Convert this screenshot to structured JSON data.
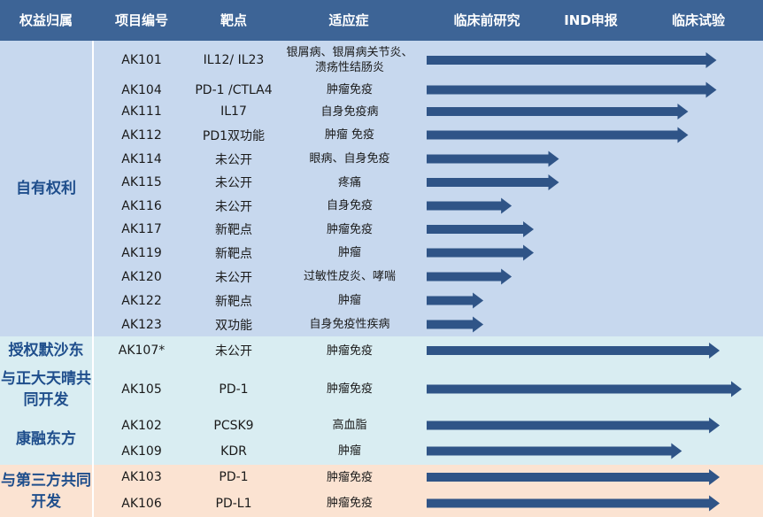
{
  "header": {
    "col_group": "权益归属",
    "col_code": "项目编号",
    "col_target": "靶点",
    "col_indication": "适应症",
    "stage_preclinical": "临床前研究",
    "stage_ind": "IND申报",
    "stage_clinical": "临床试验"
  },
  "colors": {
    "header_bg": "#3d6496",
    "arrow": "#2f5487",
    "group_text": "#1f4e8c",
    "band_blue": "#c7d8ee",
    "band_teal": "#d9edf2",
    "band_peach": "#fbe3d2"
  },
  "groups": [
    {
      "label": "自有权利",
      "band": "blue"
    },
    {
      "label": "授权默沙东",
      "band": "teal"
    },
    {
      "label": "与正大天晴共同开发",
      "band": "teal"
    },
    {
      "label": "康融东方",
      "band": "teal"
    },
    {
      "label": "与第三方共同开发",
      "band": "peach"
    }
  ],
  "chart_data": {
    "type": "bar",
    "orientation": "horizontal",
    "stages": [
      "临床前研究",
      "IND申报",
      "临床试验"
    ],
    "rows": [
      {
        "group": "自有权利",
        "code": "AK101",
        "target": "IL12/ IL23",
        "indication": "银屑病、银屑病关节炎、溃疡性结肠炎",
        "progress": 0.92
      },
      {
        "group": "自有权利",
        "code": "AK104",
        "target": "PD-1 /CTLA4",
        "indication": "肿瘤免疫",
        "progress": 0.92
      },
      {
        "group": "自有权利",
        "code": "AK111",
        "target": "IL17",
        "indication": "自身免疫病",
        "progress": 0.83
      },
      {
        "group": "自有权利",
        "code": "AK112",
        "target": "PD1双功能",
        "indication": "肿瘤 免疫",
        "progress": 0.83
      },
      {
        "group": "自有权利",
        "code": "AK114",
        "target": "未公开",
        "indication": "眼病、自身免疫",
        "progress": 0.42
      },
      {
        "group": "自有权利",
        "code": "AK115",
        "target": "未公开",
        "indication": "疼痛",
        "progress": 0.42
      },
      {
        "group": "自有权利",
        "code": "AK116",
        "target": "未公开",
        "indication": "自身免疫",
        "progress": 0.27
      },
      {
        "group": "自有权利",
        "code": "AK117",
        "target": "新靶点",
        "indication": "肿瘤免疫",
        "progress": 0.34
      },
      {
        "group": "自有权利",
        "code": "AK119",
        "target": "新靶点",
        "indication": "肿瘤",
        "progress": 0.34
      },
      {
        "group": "自有权利",
        "code": "AK120",
        "target": "未公开",
        "indication": "过敏性皮炎、哮喘",
        "progress": 0.27
      },
      {
        "group": "自有权利",
        "code": "AK122",
        "target": "新靶点",
        "indication": "肿瘤",
        "progress": 0.18
      },
      {
        "group": "自有权利",
        "code": "AK123",
        "target": "双功能",
        "indication": "自身免疫性疾病",
        "progress": 0.18
      },
      {
        "group": "授权默沙东",
        "code": "AK107*",
        "target": "未公开",
        "indication": "肿瘤免疫",
        "progress": 0.93
      },
      {
        "group": "与正大天晴共同开发",
        "code": "AK105",
        "target": "PD-1",
        "indication": "肿瘤免疫",
        "progress": 1.0
      },
      {
        "group": "康融东方",
        "code": "AK102",
        "target": "PCSK9",
        "indication": "高血脂",
        "progress": 0.93
      },
      {
        "group": "康融东方",
        "code": "AK109",
        "target": "KDR",
        "indication": "肿瘤",
        "progress": 0.81
      },
      {
        "group": "与第三方共同开发",
        "code": "AK103",
        "target": "PD-1",
        "indication": "肿瘤免疫",
        "progress": 0.93
      },
      {
        "group": "与第三方共同开发",
        "code": "AK106",
        "target": "PD-L1",
        "indication": "肿瘤免疫",
        "progress": 0.93
      }
    ]
  }
}
